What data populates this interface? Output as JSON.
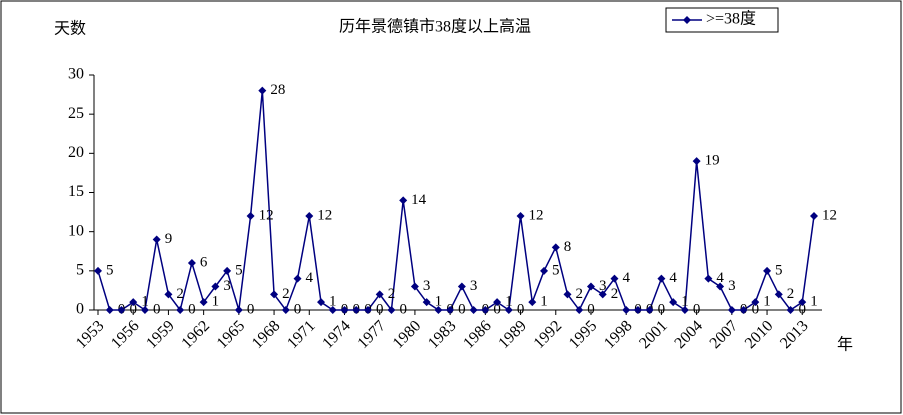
{
  "chart_data": {
    "type": "line",
    "title": "历年景德镇市38度以上高温",
    "y_label": "天数",
    "x_label": "年",
    "categories": [
      "1953",
      null,
      null,
      "1956",
      null,
      null,
      "1959",
      null,
      null,
      "1962",
      null,
      null,
      "1965",
      null,
      null,
      "1968",
      null,
      null,
      "1971",
      null,
      null,
      "1974",
      null,
      null,
      "1977",
      null,
      null,
      "1980",
      null,
      null,
      "1983",
      null,
      null,
      "1986",
      null,
      null,
      "1989",
      null,
      null,
      "1992",
      null,
      null,
      "1995",
      null,
      null,
      "1998",
      null,
      null,
      "2001",
      null,
      null,
      "2004",
      null,
      null,
      "2007",
      null,
      null,
      "2010",
      null,
      null,
      "2013",
      null
    ],
    "series": [
      {
        "name": ">=38度",
        "color": "#000080",
        "values": [
          5,
          0,
          0,
          1,
          0,
          9,
          2,
          0,
          6,
          1,
          3,
          5,
          0,
          12,
          28,
          2,
          0,
          4,
          12,
          1,
          0,
          0,
          0,
          0,
          2,
          0,
          14,
          3,
          1,
          0,
          0,
          3,
          0,
          0,
          1,
          0,
          12,
          1,
          5,
          8,
          2,
          0,
          3,
          2,
          4,
          0,
          0,
          0,
          4,
          1,
          0,
          19,
          4,
          3,
          0,
          0,
          1,
          5,
          2,
          0,
          1,
          12
        ]
      }
    ],
    "ylim": [
      0,
      30
    ],
    "yticks": [
      0,
      5,
      10,
      15,
      20,
      25,
      30
    ],
    "legend": "top-right"
  }
}
